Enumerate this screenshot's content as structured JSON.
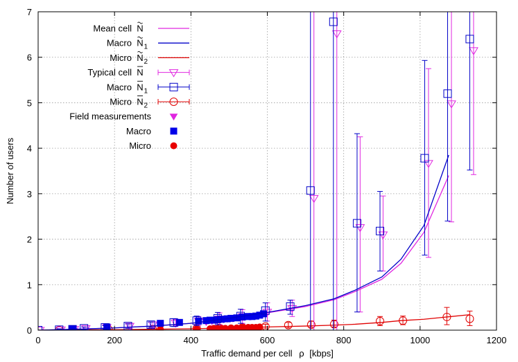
{
  "chart_data": {
    "type": "line",
    "xlabel": "Traffic demand per cell",
    "xlabel_symbol": "ρ",
    "xlabel_unit": "[kbps]",
    "ylabel": "Number of users",
    "xlim": [
      0,
      1200
    ],
    "ylim": [
      0,
      7
    ],
    "x_ticks": [
      0,
      200,
      400,
      600,
      800,
      1000,
      1200
    ],
    "y_ticks": [
      0,
      1,
      2,
      3,
      4,
      5,
      6,
      7
    ],
    "grid": true,
    "legend_position": "top-left",
    "legend": [
      {
        "key": "mean_total",
        "label": "Mean cell",
        "symbol": "N",
        "accent": "tilde",
        "sub": ""
      },
      {
        "key": "mean_macro",
        "label": "Macro",
        "symbol": "N",
        "accent": "tilde",
        "sub": "1"
      },
      {
        "key": "mean_micro",
        "label": "Micro",
        "symbol": "N",
        "accent": "tilde",
        "sub": "2"
      },
      {
        "key": "typ_total",
        "label": "Typical cell",
        "symbol": "N",
        "accent": "bar",
        "sub": ""
      },
      {
        "key": "typ_macro",
        "label": "Macro",
        "symbol": "N",
        "accent": "bar",
        "sub": "1"
      },
      {
        "key": "typ_micro",
        "label": "Micro",
        "symbol": "N",
        "accent": "bar",
        "sub": "2"
      },
      {
        "key": "field_total",
        "label": "Field measurements",
        "symbol": "",
        "accent": "",
        "sub": ""
      },
      {
        "key": "field_macro",
        "label": "Macro",
        "symbol": "",
        "accent": "",
        "sub": ""
      },
      {
        "key": "field_micro",
        "label": "Micro",
        "symbol": "",
        "accent": "",
        "sub": ""
      }
    ],
    "series": [
      {
        "key": "mean_total",
        "kind": "line",
        "color": "#e026e0",
        "x": [
          0,
          100,
          200,
          300,
          400,
          500,
          600,
          700,
          775,
          830,
          900,
          950,
          1010,
          1075
        ],
        "y": [
          0,
          0.02,
          0.05,
          0.09,
          0.15,
          0.25,
          0.38,
          0.52,
          0.67,
          0.85,
          1.12,
          1.47,
          2.15,
          3.4
        ]
      },
      {
        "key": "mean_macro",
        "kind": "line",
        "color": "#0000c8",
        "x": [
          0,
          100,
          200,
          300,
          400,
          500,
          600,
          700,
          775,
          830,
          900,
          950,
          1010,
          1075
        ],
        "y": [
          0,
          0.02,
          0.05,
          0.09,
          0.15,
          0.26,
          0.39,
          0.54,
          0.69,
          0.88,
          1.17,
          1.56,
          2.3,
          3.85
        ]
      },
      {
        "key": "mean_micro",
        "kind": "line",
        "color": "#e00000",
        "x": [
          0,
          100,
          200,
          300,
          400,
          500,
          600,
          700,
          775,
          830,
          900,
          950,
          1010,
          1070,
          1130
        ],
        "y": [
          0,
          0.005,
          0.01,
          0.02,
          0.03,
          0.05,
          0.07,
          0.09,
          0.11,
          0.13,
          0.17,
          0.21,
          0.24,
          0.29,
          0.34
        ]
      },
      {
        "key": "typ_total",
        "kind": "errorbar",
        "marker": "triangle-down",
        "color": "#e026e0",
        "points": [
          {
            "x": 5,
            "y": 0.0,
            "lo": 0.0,
            "hi": 0.0
          },
          {
            "x": 60,
            "y": 0.01,
            "lo": 0.0,
            "hi": 0.03
          },
          {
            "x": 95,
            "y": 0.02,
            "lo": 0.0,
            "hi": 0.04
          },
          {
            "x": 125,
            "y": 0.04,
            "lo": 0.01,
            "hi": 0.07
          },
          {
            "x": 180,
            "y": 0.06,
            "lo": 0.02,
            "hi": 0.1
          },
          {
            "x": 240,
            "y": 0.09,
            "lo": 0.04,
            "hi": 0.14
          },
          {
            "x": 300,
            "y": 0.12,
            "lo": 0.06,
            "hi": 0.18
          },
          {
            "x": 360,
            "y": 0.16,
            "lo": 0.08,
            "hi": 0.24
          },
          {
            "x": 420,
            "y": 0.2,
            "lo": 0.1,
            "hi": 0.3
          },
          {
            "x": 475,
            "y": 0.25,
            "lo": 0.12,
            "hi": 0.38
          },
          {
            "x": 535,
            "y": 0.3,
            "lo": 0.15,
            "hi": 0.45
          },
          {
            "x": 600,
            "y": 0.4,
            "lo": 0.2,
            "hi": 0.6
          },
          {
            "x": 665,
            "y": 0.48,
            "lo": 0.3,
            "hi": 0.66
          },
          {
            "x": 722,
            "y": 2.9,
            "lo": 0.0,
            "hi": 7.0
          },
          {
            "x": 782,
            "y": 6.52,
            "lo": 0.0,
            "hi": 7.0
          },
          {
            "x": 843,
            "y": 2.26,
            "lo": 0.4,
            "hi": 4.25
          },
          {
            "x": 903,
            "y": 2.1,
            "lo": 1.3,
            "hi": 2.95
          },
          {
            "x": 1022,
            "y": 3.67,
            "lo": 1.6,
            "hi": 5.75
          },
          {
            "x": 1082,
            "y": 4.98,
            "lo": 2.38,
            "hi": 7.0
          },
          {
            "x": 1140,
            "y": 6.15,
            "lo": 3.42,
            "hi": 7.0
          }
        ]
      },
      {
        "key": "typ_macro",
        "kind": "errorbar",
        "marker": "square-open",
        "color": "#0000c8",
        "points": [
          {
            "x": 0,
            "y": 0.0,
            "lo": 0.0,
            "hi": 0.0
          },
          {
            "x": 55,
            "y": 0.01,
            "lo": 0.0,
            "hi": 0.03
          },
          {
            "x": 90,
            "y": 0.02,
            "lo": 0.0,
            "hi": 0.04
          },
          {
            "x": 120,
            "y": 0.04,
            "lo": 0.01,
            "hi": 0.07
          },
          {
            "x": 175,
            "y": 0.06,
            "lo": 0.02,
            "hi": 0.1
          },
          {
            "x": 235,
            "y": 0.09,
            "lo": 0.04,
            "hi": 0.14
          },
          {
            "x": 295,
            "y": 0.12,
            "lo": 0.06,
            "hi": 0.18
          },
          {
            "x": 355,
            "y": 0.17,
            "lo": 0.08,
            "hi": 0.25
          },
          {
            "x": 415,
            "y": 0.21,
            "lo": 0.1,
            "hi": 0.31
          },
          {
            "x": 470,
            "y": 0.26,
            "lo": 0.12,
            "hi": 0.39
          },
          {
            "x": 530,
            "y": 0.31,
            "lo": 0.15,
            "hi": 0.46
          },
          {
            "x": 595,
            "y": 0.43,
            "lo": 0.2,
            "hi": 0.6
          },
          {
            "x": 660,
            "y": 0.52,
            "lo": 0.35,
            "hi": 0.66
          },
          {
            "x": 713,
            "y": 3.07,
            "lo": 0.0,
            "hi": 7.0
          },
          {
            "x": 773,
            "y": 6.78,
            "lo": 0.0,
            "hi": 7.0
          },
          {
            "x": 835,
            "y": 2.35,
            "lo": 0.4,
            "hi": 4.32
          },
          {
            "x": 895,
            "y": 2.18,
            "lo": 1.3,
            "hi": 3.05
          },
          {
            "x": 1012,
            "y": 3.78,
            "lo": 1.65,
            "hi": 5.93
          },
          {
            "x": 1072,
            "y": 5.2,
            "lo": 2.4,
            "hi": 7.0
          },
          {
            "x": 1130,
            "y": 6.4,
            "lo": 3.52,
            "hi": 7.0
          }
        ]
      },
      {
        "key": "typ_micro",
        "kind": "errorbar",
        "marker": "circle-open",
        "color": "#e00000",
        "points": [
          {
            "x": 55,
            "y": 0.0,
            "lo": 0.0,
            "hi": 0.01
          },
          {
            "x": 90,
            "y": 0.0,
            "lo": 0.0,
            "hi": 0.01
          },
          {
            "x": 185,
            "y": 0.01,
            "lo": 0.0,
            "hi": 0.02
          },
          {
            "x": 300,
            "y": 0.02,
            "lo": 0.0,
            "hi": 0.04
          },
          {
            "x": 415,
            "y": 0.04,
            "lo": 0.01,
            "hi": 0.07
          },
          {
            "x": 475,
            "y": 0.05,
            "lo": 0.02,
            "hi": 0.08
          },
          {
            "x": 535,
            "y": 0.06,
            "lo": 0.02,
            "hi": 0.1
          },
          {
            "x": 595,
            "y": 0.08,
            "lo": 0.03,
            "hi": 0.13
          },
          {
            "x": 655,
            "y": 0.11,
            "lo": 0.05,
            "hi": 0.17
          },
          {
            "x": 715,
            "y": 0.12,
            "lo": 0.06,
            "hi": 0.2
          },
          {
            "x": 775,
            "y": 0.13,
            "lo": 0.07,
            "hi": 0.22
          },
          {
            "x": 895,
            "y": 0.2,
            "lo": 0.1,
            "hi": 0.3
          },
          {
            "x": 955,
            "y": 0.21,
            "lo": 0.12,
            "hi": 0.31
          },
          {
            "x": 1070,
            "y": 0.29,
            "lo": 0.12,
            "hi": 0.5
          },
          {
            "x": 1130,
            "y": 0.25,
            "lo": 0.1,
            "hi": 0.42
          }
        ]
      },
      {
        "key": "field_total",
        "kind": "scatter",
        "marker": "triangle-down-filled",
        "color": "#e026e0",
        "x": [
          440,
          455,
          465,
          475,
          485,
          495,
          510,
          525,
          540,
          555,
          565,
          575,
          585
        ],
        "y": [
          0.18,
          0.2,
          0.21,
          0.23,
          0.24,
          0.25,
          0.26,
          0.28,
          0.29,
          0.3,
          0.31,
          0.32,
          0.34
        ]
      },
      {
        "key": "field_macro",
        "kind": "scatter",
        "marker": "square-filled",
        "color": "#0000e8",
        "x": [
          90,
          180,
          320,
          370,
          420,
          440,
          450,
          460,
          470,
          480,
          495,
          505,
          520,
          535,
          550,
          560,
          570,
          580,
          590
        ],
        "y": [
          0.03,
          0.07,
          0.15,
          0.17,
          0.2,
          0.21,
          0.22,
          0.22,
          0.23,
          0.24,
          0.25,
          0.26,
          0.27,
          0.29,
          0.3,
          0.3,
          0.31,
          0.33,
          0.36
        ]
      },
      {
        "key": "field_micro",
        "kind": "scatter",
        "marker": "circle-filled",
        "color": "#e80000",
        "x": [
          90,
          180,
          320,
          415,
          450,
          460,
          470,
          480,
          490,
          505,
          520,
          535,
          550,
          560,
          570,
          580
        ],
        "y": [
          0.0,
          0.01,
          0.02,
          0.03,
          0.03,
          0.04,
          0.04,
          0.04,
          0.04,
          0.05,
          0.05,
          0.06,
          0.06,
          0.06,
          0.06,
          0.07
        ]
      }
    ]
  }
}
